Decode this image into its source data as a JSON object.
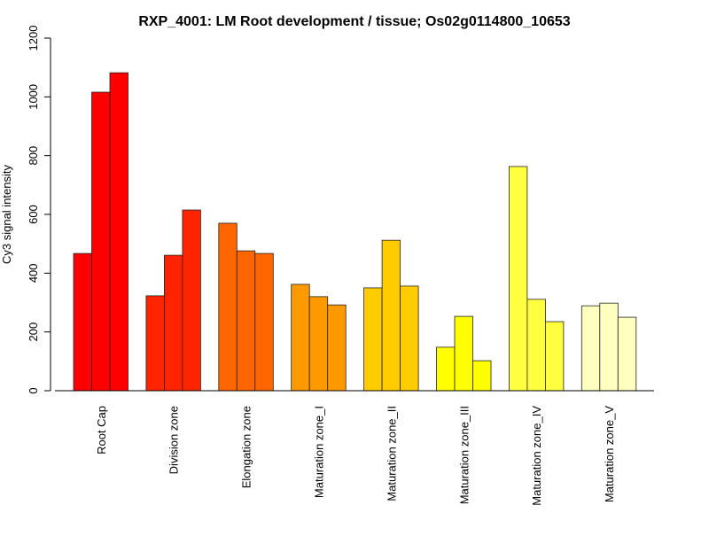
{
  "chart_data": {
    "type": "bar",
    "title": "RXP_4001: LM Root development / tissue; Os02g0114800_10653",
    "xlabel": "",
    "ylabel": "Cy3 signal intensity",
    "ylim": [
      0,
      1200
    ],
    "yticks": [
      0,
      200,
      400,
      600,
      800,
      1000,
      1200
    ],
    "grid": false,
    "legend": "none",
    "categories": [
      "Root Cap",
      "Division zone",
      "Elongation zone",
      "Maturation zone_I",
      "Maturation zone_II",
      "Maturation zone_III",
      "Maturation zone_IV",
      "Maturation zone_V"
    ],
    "colors": [
      "#FF0000",
      "#FF2400",
      "#FF6600",
      "#FF9900",
      "#FFCC00",
      "#FFFF00",
      "#FFFF40",
      "#FFFFC0"
    ],
    "values": [
      [
        467,
        1016,
        1082
      ],
      [
        323,
        461,
        615
      ],
      [
        570,
        476,
        467
      ],
      [
        362,
        320,
        292
      ],
      [
        350,
        512,
        356
      ],
      [
        148,
        253,
        102
      ],
      [
        763,
        311,
        235
      ],
      [
        289,
        298,
        250
      ]
    ]
  }
}
